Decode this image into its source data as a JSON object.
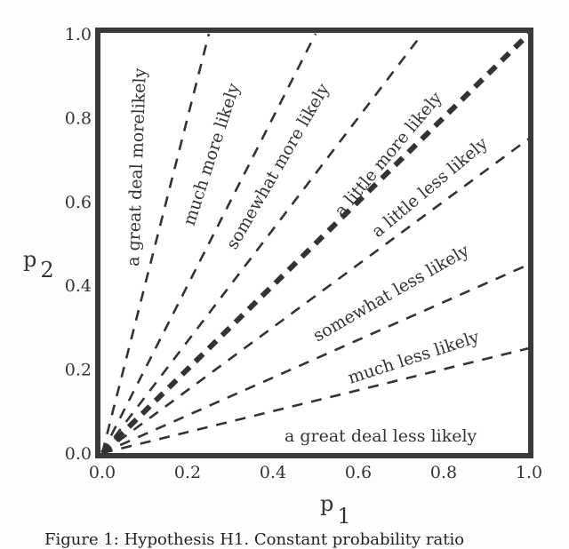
{
  "chart_data": {
    "type": "line",
    "xlabel": "p",
    "xlabel_sub": "1",
    "ylabel": "p",
    "ylabel_sub": "2",
    "xlim": [
      0,
      1
    ],
    "ylim": [
      0,
      1
    ],
    "xticks": [
      "0.0",
      "0.2",
      "0.4",
      "0.6",
      "0.8",
      "1.0"
    ],
    "yticks": [
      "0.0",
      "0.2",
      "0.4",
      "0.6",
      "0.8",
      "1.0"
    ],
    "grid": false,
    "series": [
      {
        "x": [
          0,
          0.25
        ],
        "y": [
          0,
          1.0
        ],
        "style": "dashed"
      },
      {
        "x": [
          0,
          0.5
        ],
        "y": [
          0,
          1.0
        ],
        "style": "dashed"
      },
      {
        "x": [
          0,
          0.75
        ],
        "y": [
          0,
          1.0
        ],
        "style": "dashed"
      },
      {
        "x": [
          0,
          1.0
        ],
        "y": [
          0,
          1.0
        ],
        "style": "thick-dashed"
      },
      {
        "x": [
          0,
          1.0
        ],
        "y": [
          0,
          0.75
        ],
        "style": "dashed"
      },
      {
        "x": [
          0,
          1.0
        ],
        "y": [
          0,
          0.45
        ],
        "style": "dashed"
      },
      {
        "x": [
          0,
          1.0
        ],
        "y": [
          0,
          0.25
        ],
        "style": "dashed"
      }
    ],
    "annotations": [
      "a great deal morelikely",
      "much more likely",
      "somewhat more likely",
      "a little more likely",
      "a little less likely",
      "somewhat less likely",
      "much less likely",
      "a great deal less likely"
    ],
    "caption": "Figure 1: Hypothesis H1. Constant probability ratio",
    "colors": {
      "ink": "#333333",
      "background": "#fdfdfb"
    }
  }
}
